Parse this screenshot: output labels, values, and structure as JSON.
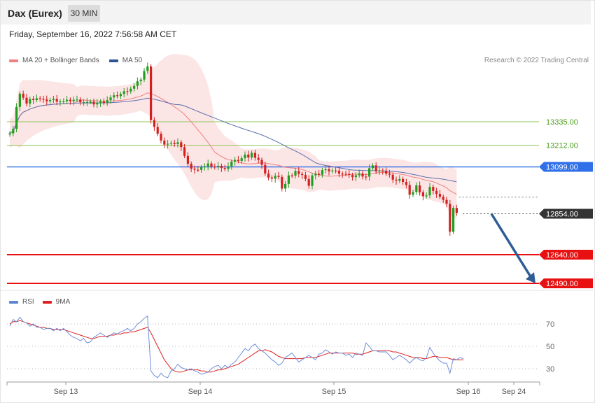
{
  "header": {
    "title": "Dax (Eurex)",
    "interval": "30 MIN",
    "timestamp": "Friday, September 16, 2022 7:56:58 AM CET",
    "credit": "Research © 2022 Trading Central"
  },
  "colors": {
    "candle_up": "#1f9e1f",
    "candle_down": "#d42020",
    "bollinger_fill": "#fbdcdc",
    "ma20": "#f08080",
    "ma50": "#5b6fb0",
    "resistance": "#8dc65a",
    "pivot": "#2f6fe8",
    "support": "#e81010",
    "current": "#333333",
    "arrow": "#2e5c96",
    "rsi": "#6f8fd8",
    "rsi_ma": "#e02020"
  },
  "legend": {
    "main": [
      {
        "label": "MA 20 + Bollinger Bands",
        "color": "#f08080"
      },
      {
        "label": "MA 50",
        "color": "#2f5496"
      }
    ],
    "rsi": [
      {
        "label": "RSI",
        "color": "#5b86d6"
      },
      {
        "label": "9MA",
        "color": "#e02020"
      }
    ]
  },
  "chart_data": [
    {
      "type": "candlestick",
      "title": "Dax (Eurex) 30 MIN",
      "x_ticks": [
        "Sep 13",
        "Sep 14",
        "Sep 15",
        "Sep 16",
        "Sep 24"
      ],
      "ylim": [
        12440,
        13930
      ],
      "price_path": [
        [
          0,
          13281
        ],
        [
          1,
          13300
        ],
        [
          2,
          13410
        ],
        [
          3,
          13475
        ],
        [
          4,
          13465
        ],
        [
          5,
          13430
        ],
        [
          6,
          13450
        ],
        [
          8,
          13460
        ],
        [
          10,
          13445
        ],
        [
          13,
          13450
        ],
        [
          16,
          13440
        ],
        [
          19,
          13450
        ],
        [
          22,
          13440
        ],
        [
          25,
          13430
        ],
        [
          28,
          13440
        ],
        [
          30,
          13460
        ],
        [
          33,
          13480
        ],
        [
          35,
          13500
        ],
        [
          37,
          13520
        ],
        [
          39,
          13560
        ],
        [
          40,
          13600
        ],
        [
          41,
          13620
        ],
        [
          42,
          13350
        ],
        [
          43,
          13310
        ],
        [
          44,
          13270
        ],
        [
          45,
          13230
        ],
        [
          46,
          13220
        ],
        [
          48,
          13220
        ],
        [
          50,
          13230
        ],
        [
          51,
          13200
        ],
        [
          52,
          13150
        ],
        [
          53,
          13120
        ],
        [
          54,
          13090
        ],
        [
          55,
          13080
        ],
        [
          56,
          13090
        ],
        [
          57,
          13100
        ],
        [
          58,
          13100
        ],
        [
          59,
          13110
        ],
        [
          61,
          13100
        ],
        [
          63,
          13100
        ],
        [
          64,
          13090
        ],
        [
          65,
          13100
        ],
        [
          66,
          13120
        ],
        [
          67,
          13140
        ],
        [
          68,
          13130
        ],
        [
          69,
          13140
        ],
        [
          70,
          13170
        ],
        [
          71,
          13150
        ],
        [
          72,
          13170
        ],
        [
          73,
          13140
        ],
        [
          74,
          13140
        ],
        [
          75,
          13110
        ],
        [
          76,
          13060
        ],
        [
          77,
          13050
        ],
        [
          78,
          13040
        ],
        [
          79,
          13050
        ],
        [
          80,
          13040
        ],
        [
          81,
          12990
        ],
        [
          82,
          13010
        ],
        [
          83,
          13050
        ],
        [
          84,
          13060
        ],
        [
          85,
          13080
        ],
        [
          86,
          13060
        ],
        [
          87,
          13050
        ],
        [
          88,
          13040
        ],
        [
          89,
          13000
        ],
        [
          90,
          13050
        ],
        [
          91,
          13070
        ],
        [
          92,
          13060
        ],
        [
          93,
          13080
        ],
        [
          94,
          13080
        ],
        [
          96,
          13080
        ],
        [
          98,
          13070
        ],
        [
          100,
          13060
        ],
        [
          101,
          13050
        ],
        [
          102,
          13050
        ],
        [
          104,
          13060
        ],
        [
          106,
          13050
        ],
        [
          107,
          13090
        ],
        [
          108,
          13100
        ],
        [
          109,
          13080
        ],
        [
          110,
          13080
        ],
        [
          111,
          13075
        ],
        [
          112,
          13070
        ],
        [
          113,
          13060
        ],
        [
          114,
          13030
        ],
        [
          115,
          13020
        ],
        [
          116,
          13040
        ],
        [
          117,
          13020
        ],
        [
          118,
          13000
        ],
        [
          119,
          12960
        ],
        [
          120,
          12970
        ],
        [
          121,
          13000
        ],
        [
          122,
          12960
        ],
        [
          123,
          12950
        ],
        [
          124,
          12950
        ],
        [
          125,
          12990
        ],
        [
          126,
          12980
        ],
        [
          127,
          12960
        ],
        [
          128,
          12940
        ],
        [
          129,
          12920
        ],
        [
          130,
          12910
        ],
        [
          131,
          12760
        ],
        [
          132,
          12880
        ],
        [
          133,
          12865
        ]
      ],
      "levels": [
        {
          "value": 13335.0,
          "label": "13335.00",
          "kind": "resistance"
        },
        {
          "value": 13212.0,
          "label": "13212.00",
          "kind": "resistance"
        },
        {
          "value": 13099.0,
          "label": "13099.00",
          "kind": "pivot"
        },
        {
          "value": 12854.0,
          "label": "12854.00",
          "kind": "current"
        },
        {
          "value": 12640.0,
          "label": "12640.00",
          "kind": "support"
        },
        {
          "value": 12490.0,
          "label": "12490.00",
          "kind": "support"
        }
      ],
      "forecast": {
        "from": 12854.0,
        "to": 12490.0,
        "direction": "down"
      }
    },
    {
      "type": "line",
      "title": "RSI",
      "series": [
        {
          "name": "RSI"
        },
        {
          "name": "9MA"
        }
      ],
      "y_ticks": [
        70,
        50,
        30
      ],
      "ylim": [
        10,
        95
      ],
      "x": [
        0,
        1,
        2,
        3,
        4,
        5,
        6,
        7,
        8,
        9,
        10,
        11,
        12,
        13,
        14,
        15,
        16,
        17,
        18,
        19,
        20,
        21,
        22,
        23,
        24,
        25,
        26,
        27,
        28,
        29,
        30,
        31,
        32,
        33,
        34,
        35,
        36,
        37,
        38,
        39,
        40,
        41,
        42,
        43,
        44,
        45,
        46,
        47,
        48,
        49,
        50,
        51,
        52,
        53,
        54,
        55,
        56,
        57,
        58,
        59,
        60,
        61,
        62,
        63,
        64,
        65,
        66,
        67,
        68,
        69,
        70,
        71,
        72,
        73,
        74,
        75,
        76,
        77,
        78,
        79,
        80,
        81,
        82,
        83,
        84,
        85,
        86,
        87,
        88,
        89,
        90,
        91,
        92,
        93,
        94,
        95,
        96,
        97,
        98,
        99,
        100,
        101,
        102,
        103,
        104,
        105,
        106,
        107,
        108,
        109,
        110,
        111,
        112,
        113,
        114,
        115,
        116,
        117,
        118,
        119,
        120,
        121,
        122,
        123,
        124,
        125,
        126,
        127,
        128,
        129,
        130,
        131,
        132,
        133,
        134,
        135
      ],
      "rsi": [
        68,
        74,
        72,
        76,
        72,
        71,
        68,
        70,
        67,
        67,
        65,
        66,
        66,
        64,
        66,
        64,
        66,
        63,
        60,
        58,
        57,
        55,
        57,
        53,
        54,
        58,
        60,
        62,
        60,
        58,
        60,
        62,
        61,
        63,
        64,
        66,
        64,
        66,
        70,
        72,
        75,
        77,
        28,
        24,
        22,
        26,
        23,
        22,
        28,
        30,
        34,
        31,
        30,
        29,
        30,
        28,
        27,
        25,
        26,
        27,
        30,
        32,
        33,
        30,
        33,
        31,
        34,
        36,
        40,
        44,
        48,
        46,
        50,
        52,
        48,
        46,
        44,
        41,
        38,
        36,
        33,
        35,
        40,
        42,
        44,
        40,
        36,
        38,
        40,
        42,
        40,
        38,
        43,
        44,
        47,
        45,
        43,
        45,
        44,
        44,
        42,
        43,
        40,
        44,
        43,
        42,
        53,
        50,
        46,
        46,
        45,
        45,
        45,
        42,
        38,
        40,
        42,
        40,
        38,
        35,
        38,
        40,
        38,
        37,
        40,
        49,
        44,
        40,
        37,
        35,
        35,
        26,
        39,
        38,
        40,
        39
      ],
      "rsi_9ma": [
        70,
        72,
        72,
        73,
        72,
        71,
        70,
        69,
        68,
        67,
        67,
        66,
        66,
        65,
        65,
        65,
        65,
        64,
        63,
        62,
        61,
        60,
        59,
        58,
        57,
        57,
        58,
        59,
        59,
        59,
        60,
        60,
        61,
        61,
        62,
        62,
        63,
        63,
        64,
        65,
        66,
        67,
        62,
        56,
        50,
        44,
        38,
        34,
        30,
        28,
        27,
        27,
        28,
        29,
        29,
        29,
        29,
        28,
        28,
        27,
        27,
        28,
        29,
        29,
        30,
        31,
        32,
        33,
        34,
        36,
        38,
        40,
        42,
        44,
        46,
        46,
        47,
        46,
        45,
        43,
        41,
        40,
        39,
        39,
        39,
        39,
        39,
        39,
        40,
        40,
        40,
        40,
        41,
        42,
        43,
        44,
        44,
        44,
        44,
        44,
        44,
        44,
        44,
        43,
        43,
        43,
        44,
        45,
        46,
        46,
        46,
        46,
        46,
        46,
        45,
        45,
        44,
        43,
        42,
        41,
        40,
        40,
        40,
        39,
        39,
        40,
        41,
        41,
        40,
        40,
        40,
        39,
        38,
        38,
        38,
        38
      ]
    }
  ]
}
